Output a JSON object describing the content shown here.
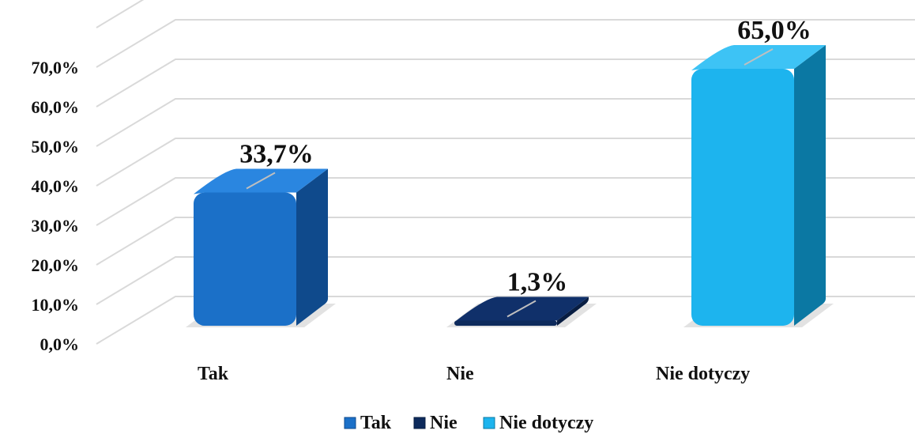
{
  "chart_data": {
    "type": "bar",
    "categories": [
      "Tak",
      "Nie",
      "Nie dotyczy"
    ],
    "values": [
      33.7,
      1.3,
      65.0
    ],
    "data_labels": [
      "33,7%",
      "1,3%",
      "65,0%"
    ],
    "y_ticks": [
      "0,0%",
      "10,0%",
      "20,0%",
      "30,0%",
      "40,0%",
      "50,0%",
      "60,0%",
      "70,0%"
    ],
    "ylim": [
      0,
      80
    ],
    "grid": true,
    "legend": [
      "Tak",
      "Nie",
      "Nie dotyczy"
    ],
    "legend_position": "bottom",
    "colors": [
      {
        "front": "#1b70c8",
        "side": "#0f4a8c",
        "top": "#2a86e0"
      },
      {
        "front": "#0d2a5c",
        "side": "#081d42",
        "top": "#10306a"
      },
      {
        "front": "#1db4ee",
        "side": "#0b78a3",
        "top": "#3dc3f5"
      }
    ],
    "grid_color": "#d9d9d9"
  }
}
